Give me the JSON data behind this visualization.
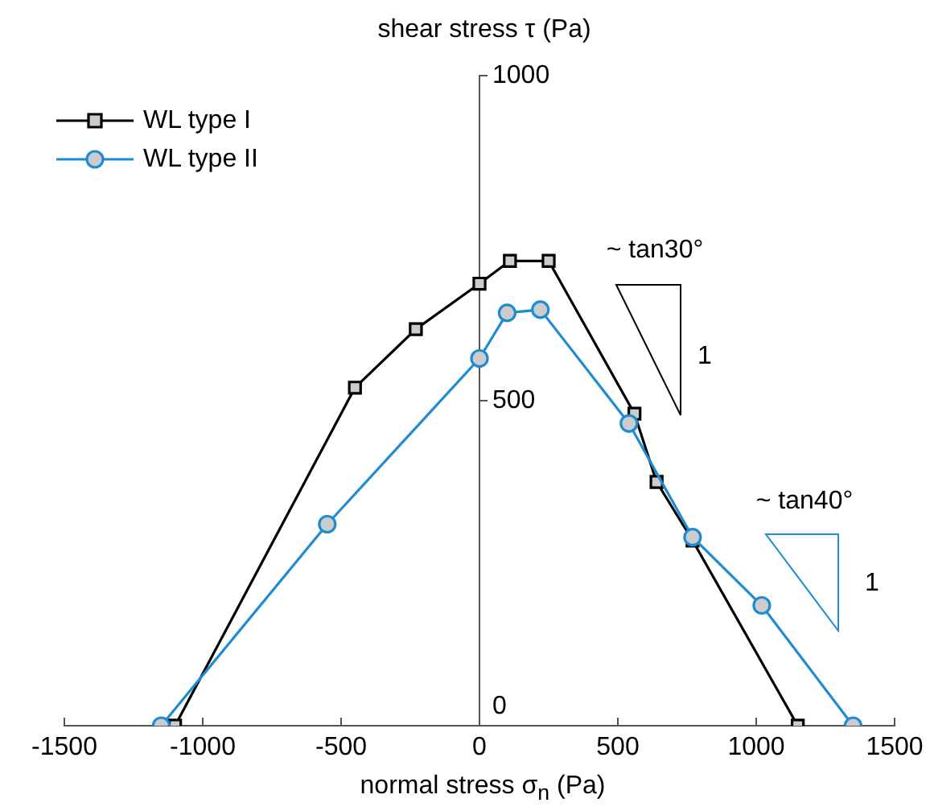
{
  "chart_data": {
    "type": "line",
    "xlabel": "normal stress σ$_{n}$ (Pa)",
    "ylabel": "shear stress τ (Pa)",
    "xlim": [
      -1500,
      1500
    ],
    "xticks": [
      -1500,
      -1000,
      -500,
      0,
      500,
      1000,
      1500
    ],
    "ylim": [
      0,
      1000
    ],
    "yticks": [
      0,
      500,
      1000
    ],
    "grid": false,
    "legend": "top left",
    "line_style": "solid",
    "series": [
      {
        "name": "WL type I",
        "color": "#000000",
        "marker": "square",
        "x": [
          -1100,
          -450,
          -230,
          0,
          110,
          250,
          560,
          640,
          770,
          1150
        ],
        "values": [
          0,
          520,
          610,
          680,
          715,
          715,
          480,
          375,
          285,
          0
        ]
      },
      {
        "name": "WL type II",
        "color": "#1f8bd1",
        "marker": "circle",
        "x": [
          -1150,
          -550,
          0,
          100,
          220,
          540,
          770,
          1020,
          1350
        ],
        "values": [
          0,
          310,
          565,
          635,
          640,
          465,
          290,
          185,
          0
        ]
      }
    ],
    "annotations": [
      "~ tan30°",
      "1",
      "~ tan40°",
      "1"
    ]
  }
}
